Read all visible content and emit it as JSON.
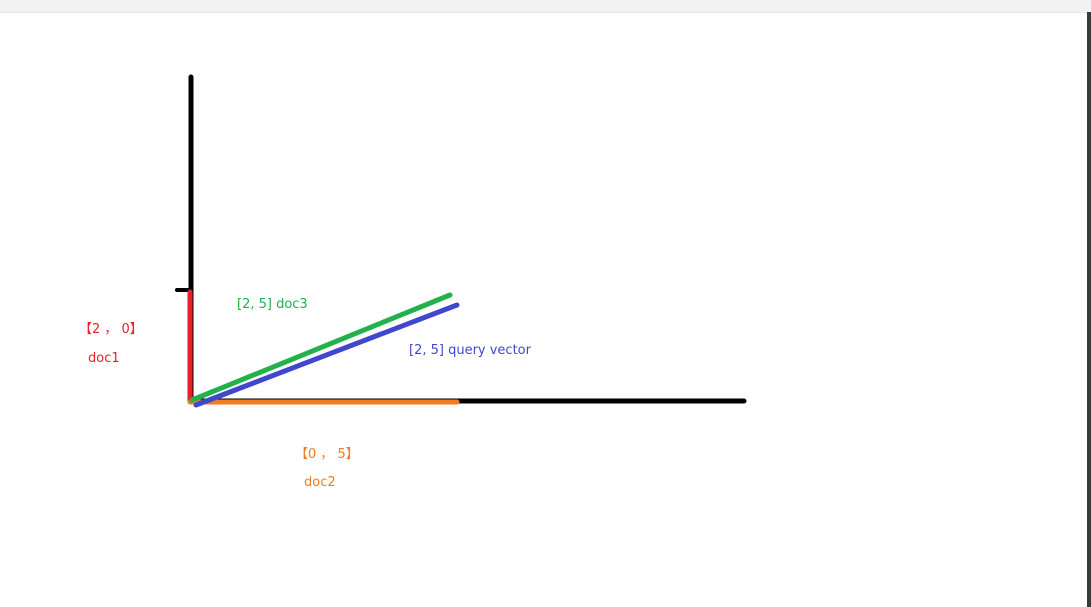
{
  "colors": {
    "axis": "#000000",
    "doc1": "#e8202a",
    "doc2": "#f47b20",
    "doc3": "#22b14c",
    "query": "#3f48cc"
  },
  "labels": {
    "doc1_vector": "【2 ， 0】",
    "doc1_name": "doc1",
    "doc2_vector": "【0 ， 5】",
    "doc2_name": "doc2",
    "doc3": "[2, 5] doc3",
    "query": "[2, 5] query vector"
  }
}
